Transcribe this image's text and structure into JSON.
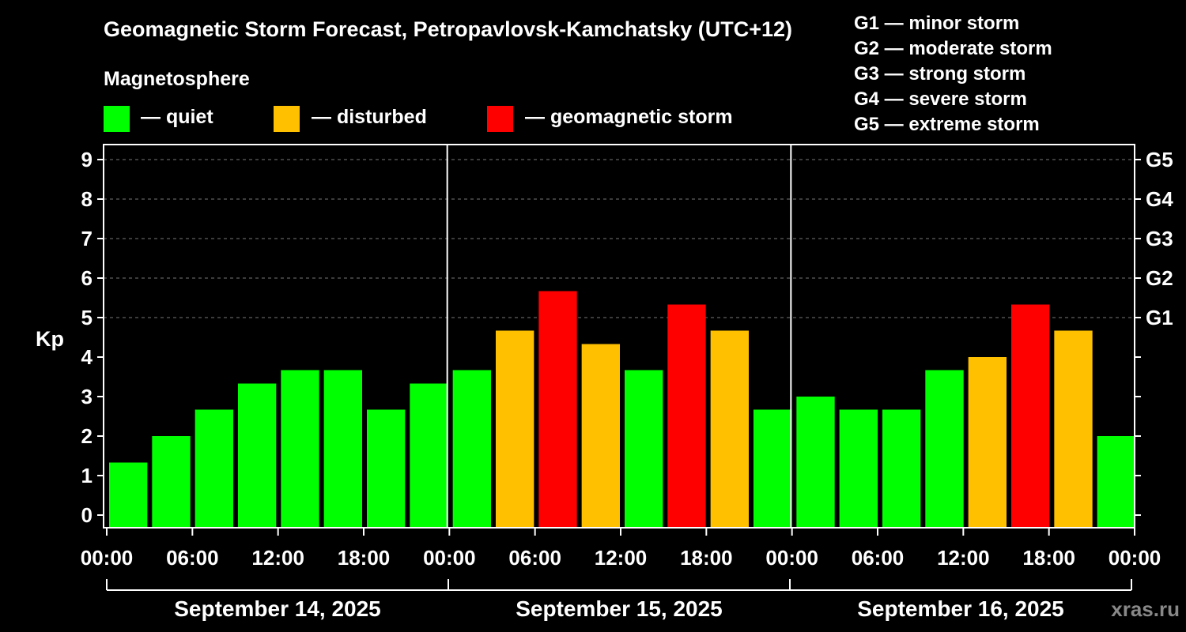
{
  "title": "Geomagnetic Storm Forecast, Petropavlovsk-Kamchatsky (UTC+12)",
  "legend": {
    "title": "Magnetosphere",
    "items": [
      {
        "label": "— quiet",
        "color": "#00ff00"
      },
      {
        "label": "— disturbed",
        "color": "#ffc000"
      },
      {
        "label": "— geomagnetic storm",
        "color": "#ff0000"
      }
    ]
  },
  "storm_scale": [
    "G1 — minor storm",
    "G2 — moderate storm",
    "G3 — strong storm",
    "G4 — severe storm",
    "G5 — extreme storm"
  ],
  "credit": "xras.ru",
  "chart_data": {
    "type": "bar",
    "ylabel": "Kp",
    "ylim": [
      0,
      9
    ],
    "y_ticks": [
      0,
      1,
      2,
      3,
      4,
      5,
      6,
      7,
      8,
      9
    ],
    "right_axis_labels": [
      {
        "value": 5,
        "label": "G1"
      },
      {
        "value": 6,
        "label": "G2"
      },
      {
        "value": 7,
        "label": "G3"
      },
      {
        "value": 8,
        "label": "G4"
      },
      {
        "value": 9,
        "label": "G5"
      }
    ],
    "x_tick_labels": [
      "00:00",
      "06:00",
      "12:00",
      "18:00",
      "00:00",
      "06:00",
      "12:00",
      "18:00",
      "00:00",
      "06:00",
      "12:00",
      "18:00",
      "00:00"
    ],
    "days": [
      "September 14, 2025",
      "September 15, 2025",
      "September 16, 2025"
    ],
    "grid": "horizontal dashed",
    "values": [
      1.33,
      2.0,
      2.67,
      3.33,
      3.67,
      3.67,
      2.67,
      3.33,
      3.67,
      4.67,
      5.67,
      4.33,
      3.67,
      5.33,
      4.67,
      2.67,
      3.0,
      2.67,
      2.67,
      3.67,
      4.0,
      5.33,
      4.67,
      2.0
    ],
    "levels": [
      "quiet",
      "quiet",
      "quiet",
      "quiet",
      "quiet",
      "quiet",
      "quiet",
      "quiet",
      "quiet",
      "disturbed",
      "storm",
      "disturbed",
      "quiet",
      "storm",
      "disturbed",
      "quiet",
      "quiet",
      "quiet",
      "quiet",
      "quiet",
      "disturbed",
      "storm",
      "disturbed",
      "quiet"
    ],
    "level_colors": {
      "quiet": "#00ff00",
      "disturbed": "#ffc000",
      "storm": "#ff0000"
    }
  }
}
